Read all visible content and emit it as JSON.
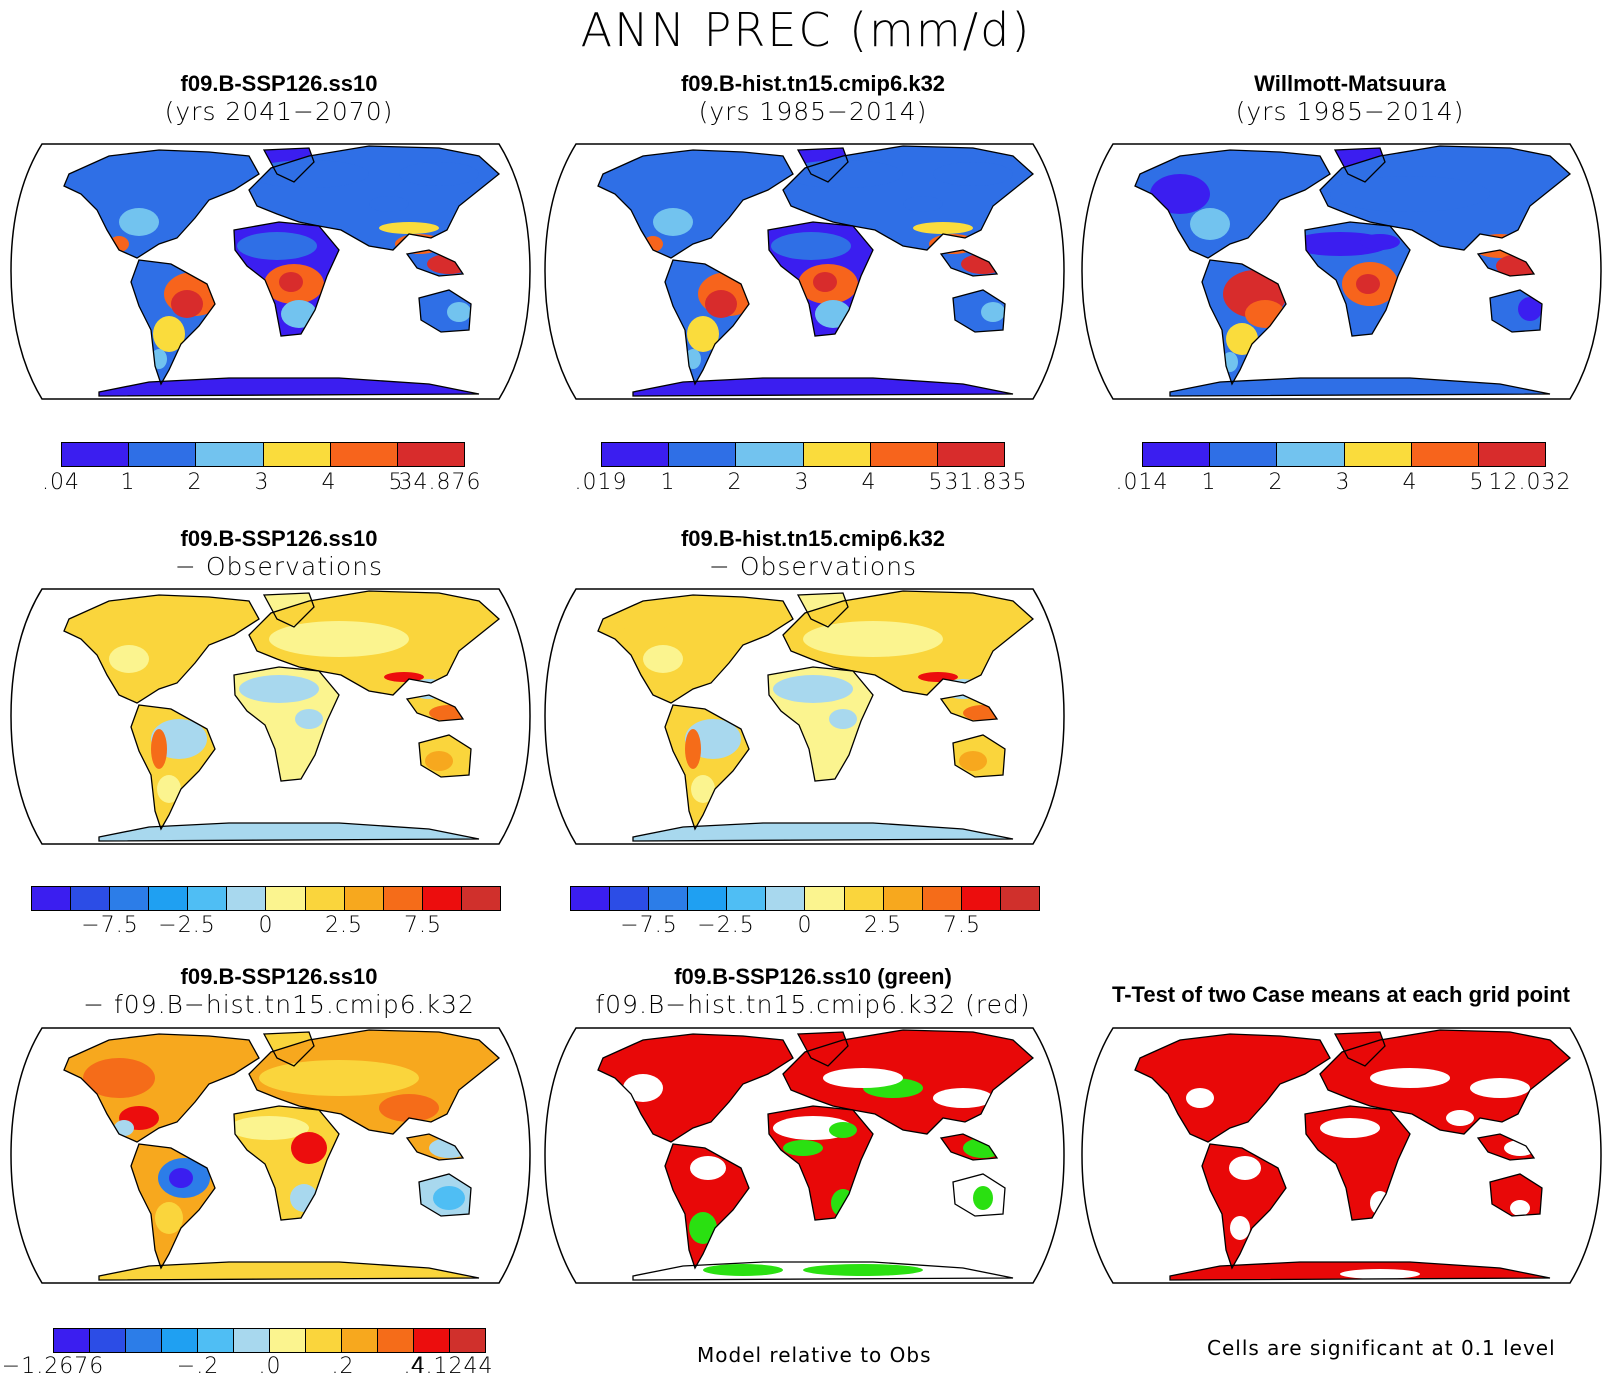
{
  "main_title": "ANN PREC (mm/d)",
  "panels": [
    {
      "title1": "f09.B-SSP126.ss10",
      "title2": "(yrs 2041−2070)",
      "scheme": "abs"
    },
    {
      "title1": "f09.B-hist.tn15.cmip6.k32",
      "title2": "(yrs 1985−2014)",
      "scheme": "abs"
    },
    {
      "title1": "Willmott-Matsuura",
      "title2": "(yrs 1985−2014)",
      "scheme": "abs2"
    },
    {
      "title1": "f09.B-SSP126.ss10",
      "title2": "− Observations",
      "scheme": "diff"
    },
    {
      "title1": "f09.B-hist.tn15.cmip6.k32",
      "title2": "− Observations",
      "scheme": "diff"
    },
    {
      "title1": "f09.B-SSP126.ss10",
      "title2": "− f09.B−hist.tn15.cmip6.k32",
      "scheme": "d2"
    },
    {
      "title1": "f09.B-SSP126.ss10 (green)",
      "title2": "f09.B−hist.tn15.cmip6.k32 (red)",
      "scheme": "sig2"
    },
    {
      "title1": "T-Test of two Case means at each grid point",
      "title2": "",
      "scheme": "sig1"
    }
  ],
  "colorbars": {
    "abs_colors": [
      "#3b1ef0",
      "#2f6fe6",
      "#72c3ef",
      "#fadc3c",
      "#f7641c",
      "#d82c2c"
    ],
    "diff_colors": [
      "#3b1ef0",
      "#2c4de6",
      "#2c7de8",
      "#1fa0f2",
      "#4fbef4",
      "#a8d8ee",
      "#fbf48f",
      "#fad53c",
      "#f7a81e",
      "#f56c19",
      "#ec0d0d",
      "#d0302c"
    ],
    "cb1": [
      "",
      ".04",
      "1",
      "2",
      "3",
      "4",
      "5",
      "34.876"
    ],
    "cb2": [
      "",
      ".019",
      "1",
      "2",
      "3",
      "4",
      "5",
      "31.835"
    ],
    "cb3": [
      "",
      ".014",
      "1",
      "2",
      "3",
      "4",
      "5",
      "12.032"
    ],
    "cb4": [
      "",
      "−7.5",
      "−2.5",
      "0",
      "2.5",
      "7.5"
    ],
    "cb5": [
      "",
      "−7.5",
      "−2.5",
      "0",
      "2.5",
      "7.5"
    ],
    "cb6": [
      "",
      "−1.2676",
      "−.2",
      ".0",
      ".2",
      ".4",
      "4.1244"
    ]
  },
  "footnotes": {
    "model_relative": "Model relative to Obs",
    "significance": "Cells are significant at 0.1 level"
  }
}
